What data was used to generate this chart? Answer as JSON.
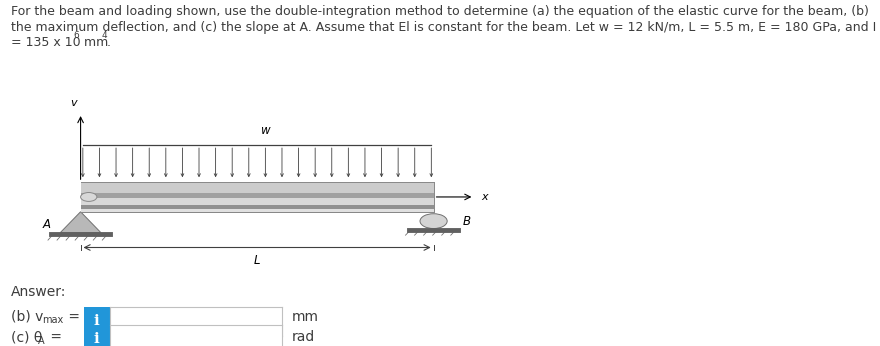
{
  "title_line1": "For the beam and loading shown, use the double-integration method to determine (a) the equation of the elastic curve for the beam, (b)",
  "title_line2": "the maximum deflection, and (c) the slope at A. Assume that El is constant for the beam. Let w = 12 kN/m, L = 5.5 m, E = 180 GPa, and I",
  "title_line3_a": "= 135 x 10",
  "title_line3_sup": "6",
  "title_line3_b": " mm",
  "title_line3_sup2": "4",
  "title_line3_c": ".",
  "answer_label": "Answer:",
  "b_unit": "mm",
  "c_unit": "rad",
  "bg_color": "#ffffff",
  "text_color": "#3c3c3c",
  "blue_color": "#2196d9",
  "box_border_color": "#c0c0c0",
  "title_fontsize": 9.0,
  "answer_fontsize": 10.0,
  "label_fontsize": 10.0,
  "beam_gray_light": "#d4d4d4",
  "beam_gray_mid": "#b8b8b8",
  "beam_gray_dark": "#909090",
  "beam_gray_stripe": "#c0c0c0",
  "support_gray": "#a8a8a8",
  "arrow_color": "#404040"
}
